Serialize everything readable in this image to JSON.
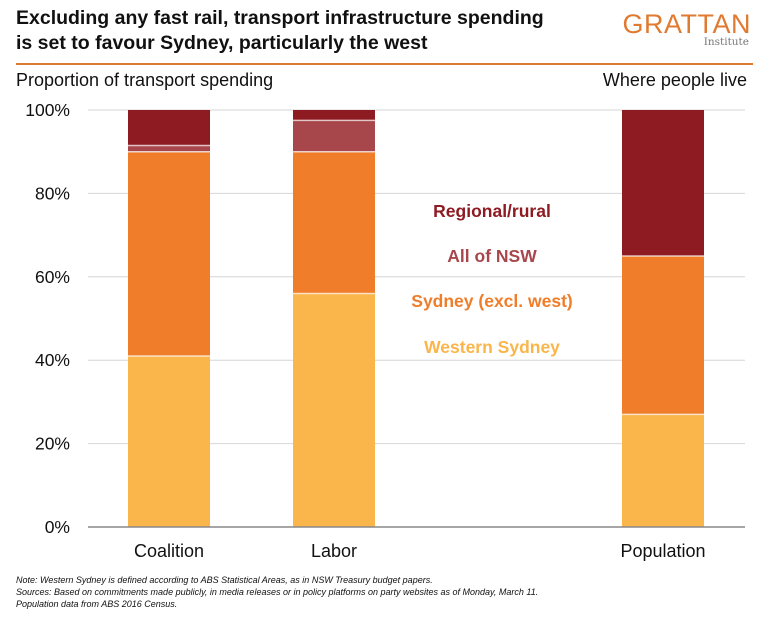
{
  "header": {
    "title_line1": "Excluding any fast rail, transport infrastructure spending",
    "title_line2": "is set to favour Sydney, particularly the west",
    "logo_word": "GRATTAN",
    "logo_sub": "Institute"
  },
  "colors": {
    "accent": "#e07a30",
    "regional": "#8e1a22",
    "all_nsw": "#a8474b",
    "sydney_excl_west": "#ef7d2a",
    "western_sydney": "#fab54b"
  },
  "chart_data": {
    "type": "bar",
    "stacked": true,
    "title": "Excluding any fast rail, transport infrastructure spending is set to favour Sydney, particularly the west",
    "ylabel_left": "Proportion of transport spending",
    "ylabel_right": "Where people live",
    "categories": [
      "Coalition",
      "Labor",
      "Population"
    ],
    "series": [
      {
        "name": "Western Sydney",
        "color": "#fab54b",
        "values": [
          41,
          56,
          27
        ]
      },
      {
        "name": "Sydney (excl. west)",
        "color": "#ef7d2a",
        "values": [
          49,
          34,
          38
        ]
      },
      {
        "name": "All of NSW",
        "color": "#a8474b",
        "values": [
          1.5,
          7.5,
          0
        ]
      },
      {
        "name": "Regional/rural",
        "color": "#8e1a22",
        "values": [
          8.5,
          2.5,
          35
        ]
      }
    ],
    "legend_order": [
      "Regional/rural",
      "All of NSW",
      "Sydney (excl. west)",
      "Western Sydney"
    ],
    "legend_position": "center-right",
    "ylim": [
      0,
      100
    ],
    "yticks": [
      "0%",
      "20%",
      "40%",
      "60%",
      "80%",
      "100%"
    ],
    "grid": true
  },
  "notes": {
    "line1": "Note: Western Sydney is defined according to ABS Statistical Areas, as in NSW Treasury budget papers.",
    "line2": "Sources: Based on commitments made publicly, in media releases or in policy platforms on party websites as of Monday, March 11.",
    "line3": "Population data from ABS 2016 Census."
  }
}
